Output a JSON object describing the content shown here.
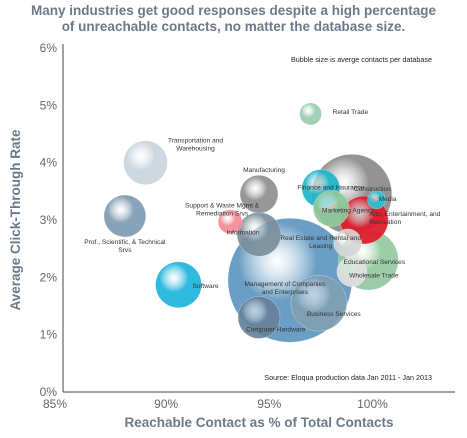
{
  "chart_data": {
    "type": "scatter",
    "title": "Many industries get good responses despite a high percentage of unreachable contacts, no matter the database size.",
    "title_lines": [
      "Many industries get good responses despite a high percentage",
      "of unreachable contacts, no matter the database size."
    ],
    "xlabel": "Reachable Contact as % of Total Contacts",
    "ylabel": "Average Click-Through Rate",
    "xlim": [
      85,
      104
    ],
    "ylim": [
      0,
      6
    ],
    "x_ticks": [
      "85%",
      "90%",
      "95%",
      "100%"
    ],
    "y_ticks": [
      "0%",
      "1%",
      "2%",
      "3%",
      "4%",
      "5%",
      "6%"
    ],
    "grid": false,
    "size_note": "Bubble size is averge contacts per database",
    "source_note": "Source: Eloqua production data Jan 2011 - Jan 2013",
    "series": [
      {
        "label": "Retail Trade",
        "x": 97.0,
        "y": 4.85,
        "size": 11,
        "color": "#9ccdb0"
      },
      {
        "label": "Construction",
        "x": 99.0,
        "y": 3.45,
        "size": 40,
        "color": "#8a8a8a"
      },
      {
        "label": "Transportation and Warehousing",
        "x": 89.0,
        "y": 4.0,
        "size": 22,
        "color": "#c9d4df"
      },
      {
        "label": "Manufacturing",
        "x": 94.5,
        "y": 3.45,
        "size": 19,
        "color": "#8e8e8e"
      },
      {
        "label": "Finance and Insurance",
        "x": 97.5,
        "y": 3.55,
        "size": 19,
        "color": "#1fb5c9"
      },
      {
        "label": "Media",
        "x": 100.2,
        "y": 3.35,
        "size": 9,
        "color": "#29c4d8"
      },
      {
        "label": "Marketing Agency",
        "x": 98.0,
        "y": 3.2,
        "size": 18,
        "color": "#8fc89a"
      },
      {
        "label": "Arts, Entertainment, and Recreation",
        "x": 99.6,
        "y": 3.0,
        "size": 24,
        "color": "#e0182a"
      },
      {
        "label": "Prof., Scientific, & Technical Srvs",
        "x": 88.0,
        "y": 3.07,
        "size": 21,
        "color": "#7e9ab2"
      },
      {
        "label": "Support & Waste Mgmt & Remediation Srvs",
        "x": 93.1,
        "y": 2.97,
        "size": 12,
        "color": "#f48a97"
      },
      {
        "label": "Information",
        "x": 94.5,
        "y": 2.75,
        "size": 22,
        "color": "#7b8e9c"
      },
      {
        "label": "Real Estate and Rental and Leasing",
        "x": 98.8,
        "y": 2.6,
        "size": 14,
        "color": "#d7d7d7"
      },
      {
        "label": "Educational Services",
        "x": 99.8,
        "y": 2.3,
        "size": 30,
        "color": "#93c9a0"
      },
      {
        "label": "Wholesale Trade",
        "x": 99.0,
        "y": 2.1,
        "size": 15,
        "color": "#e0e0e0"
      },
      {
        "label": "Software",
        "x": 90.6,
        "y": 1.87,
        "size": 23,
        "color": "#1db4db"
      },
      {
        "label": "Management of Companies and Enterprises",
        "x": 96.0,
        "y": 1.95,
        "size": 62,
        "color": "#5e96bf"
      },
      {
        "label": "Business Services",
        "x": 97.4,
        "y": 1.55,
        "size": 28,
        "color": "#7fa0b4"
      },
      {
        "label": "Computer Hardware",
        "x": 94.5,
        "y": 1.3,
        "size": 21,
        "color": "#66829a"
      }
    ]
  }
}
